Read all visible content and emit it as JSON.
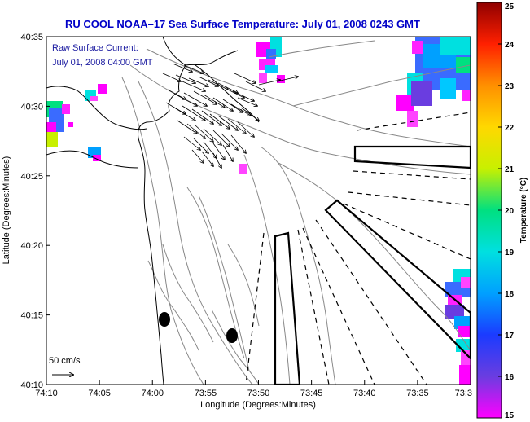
{
  "title": "RU COOL   NOAA–17  Sea Surface Temperature:  July 01, 2008 0243 GMT",
  "legend": {
    "line1": "Raw Surface Current:",
    "line2": "July 01, 2008 04:00 GMT",
    "scale_label": "50 cm/s"
  },
  "axes": {
    "xlabel": "Longitude (Degrees:Minutes)",
    "ylabel": "Latitude (Degrees:Minutes)",
    "xticks": [
      "74:10",
      "74:05",
      "74:00",
      "73:55",
      "73:50",
      "73:45",
      "73:40",
      "73:35",
      "73:3"
    ],
    "yticks": [
      "40:35",
      "40:30",
      "40:25",
      "40:20",
      "40:15",
      "40:10"
    ]
  },
  "colorbar": {
    "label": "Temperature (°C)",
    "ticks": [
      "25",
      "24",
      "23",
      "22",
      "21",
      "20",
      "19",
      "18",
      "17",
      "16",
      "15"
    ],
    "min": 15,
    "max": 25
  },
  "colors": {
    "title": "#0000c8",
    "legend_text": "#1a1aa0"
  }
}
